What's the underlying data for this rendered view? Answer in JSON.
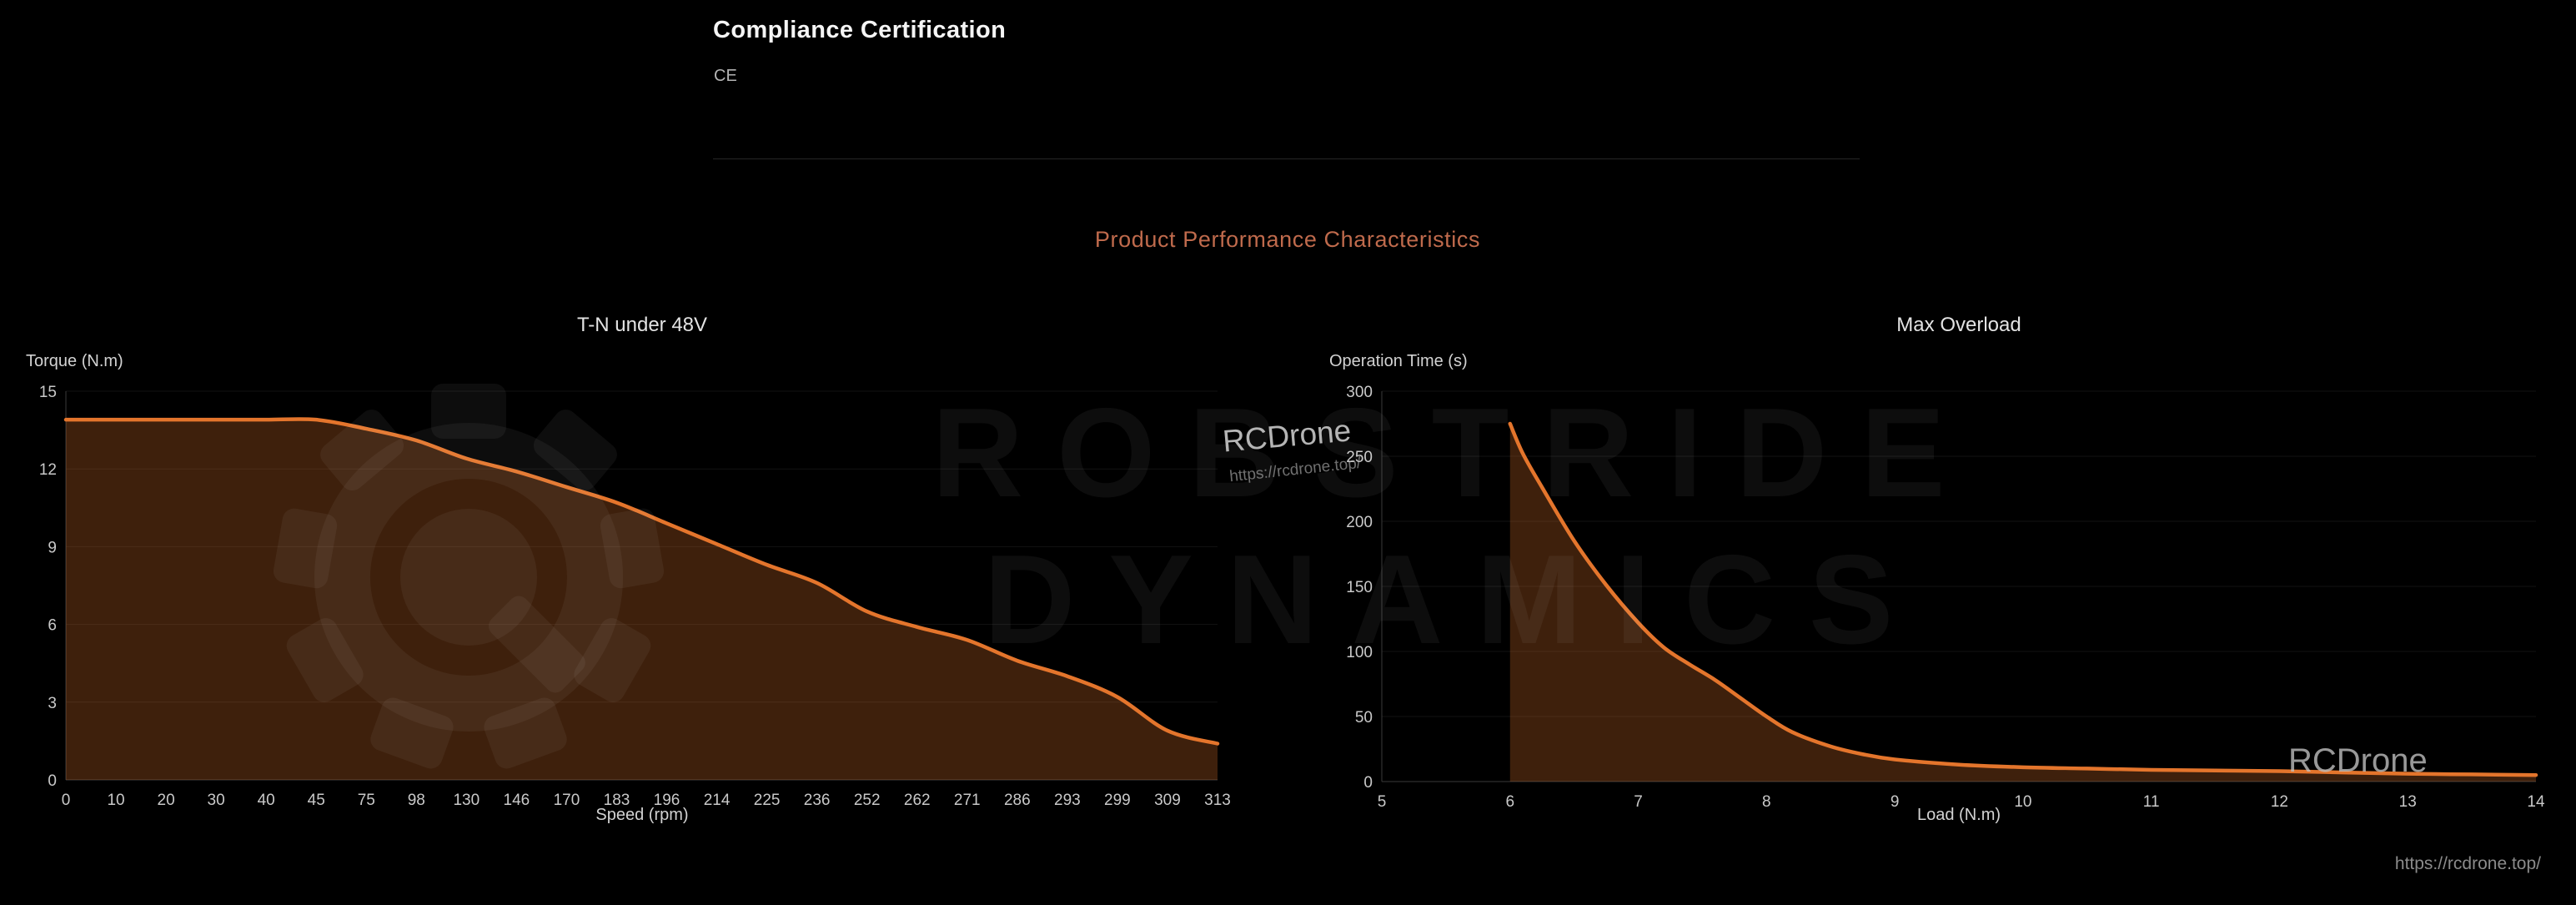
{
  "page": {
    "heading": "Compliance Certification",
    "certification": "CE",
    "section_title": "Product Performance Characteristics",
    "footer_url": "https://rcdrone.top/"
  },
  "watermarks": {
    "brand_line1": "ROBSTRIDE",
    "brand_line2": "DYNAMICS",
    "gear_icon": "gear-logo",
    "rcdrone_center": "RCDrone",
    "rcdrone_center_url": "https://rcdrone.top/",
    "rcdrone_right": "RCDrone"
  },
  "colors": {
    "background": "#000000",
    "accent_line": "#e4752c",
    "area_fill": "rgba(228,119,45,0.27)",
    "section_title": "#bf6a4c",
    "grid": "rgba(255,255,255,0.07)",
    "axis": "#3a3a3a",
    "tick_text": "#c9c9c9"
  },
  "chart_data": [
    {
      "type": "area",
      "title": "T-N under 48V",
      "ylabel": "Torque (N.m)",
      "xlabel": "Speed (rpm)",
      "categories": [
        "0",
        "10",
        "20",
        "30",
        "40",
        "45",
        "75",
        "98",
        "130",
        "146",
        "170",
        "183",
        "196",
        "214",
        "225",
        "236",
        "252",
        "262",
        "271",
        "286",
        "293",
        "299",
        "309",
        "313"
      ],
      "values": [
        13.9,
        13.9,
        13.9,
        13.9,
        13.9,
        13.9,
        13.55,
        13.1,
        12.4,
        11.9,
        11.3,
        10.7,
        9.9,
        9.1,
        8.3,
        7.6,
        6.5,
        5.9,
        5.4,
        4.6,
        4.0,
        3.2,
        1.9,
        1.4
      ],
      "ylim": [
        0,
        15
      ],
      "yticks": [
        0,
        3,
        6,
        9,
        12,
        15
      ],
      "grid": "horizontal",
      "legend": "none"
    },
    {
      "type": "area",
      "title": "Max Overload",
      "ylabel": "Operation Time (s)",
      "xlabel": "Load (N.m)",
      "xlim": [
        5,
        14
      ],
      "xticks": [
        5,
        6,
        7,
        8,
        9,
        10,
        11,
        12,
        13,
        14
      ],
      "points": [
        [
          6,
          275
        ],
        [
          6.1,
          252
        ],
        [
          6.25,
          226
        ],
        [
          6.5,
          185
        ],
        [
          6.75,
          151
        ],
        [
          7,
          122
        ],
        [
          7.2,
          103
        ],
        [
          7.4,
          90
        ],
        [
          7.6,
          78
        ],
        [
          7.8,
          64
        ],
        [
          8,
          50
        ],
        [
          8.2,
          38
        ],
        [
          8.5,
          27
        ],
        [
          8.75,
          21
        ],
        [
          9,
          17
        ],
        [
          9.5,
          13
        ],
        [
          10,
          11
        ],
        [
          10.5,
          10
        ],
        [
          11,
          9
        ],
        [
          11.5,
          8.5
        ],
        [
          12,
          8
        ],
        [
          12.5,
          7
        ],
        [
          13,
          6
        ],
        [
          13.5,
          5.5
        ],
        [
          14,
          5
        ]
      ],
      "ylim": [
        0,
        300
      ],
      "yticks": [
        0,
        50,
        100,
        150,
        200,
        250,
        300
      ],
      "grid": "horizontal",
      "legend": "none"
    }
  ]
}
